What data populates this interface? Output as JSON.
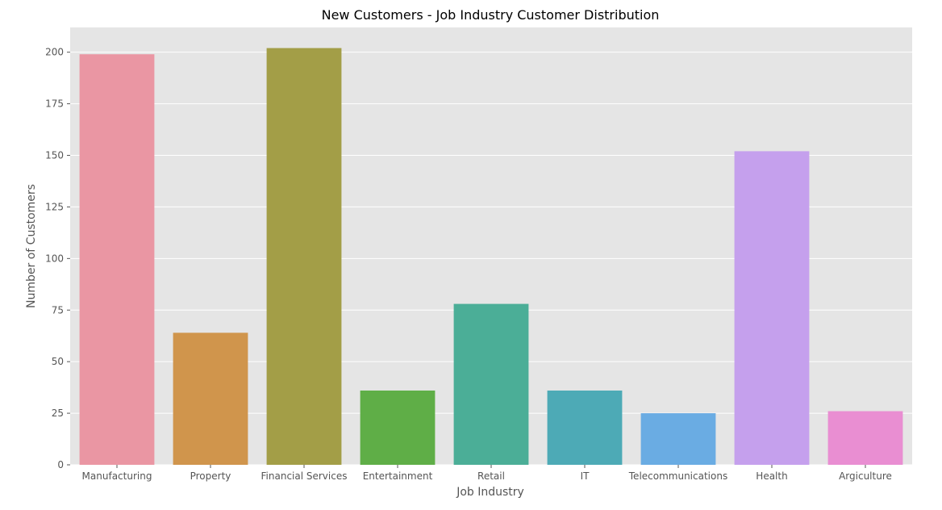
{
  "chart_data": {
    "type": "bar",
    "title": "New Customers - Job Industry Customer Distribution",
    "xlabel": "Job Industry",
    "ylabel": "Number of Customers",
    "categories": [
      "Manufacturing",
      "Property",
      "Financial Services",
      "Entertainment",
      "Retail",
      "IT",
      "Telecommunications",
      "Health",
      "Argiculture"
    ],
    "values": [
      199,
      64,
      202,
      36,
      78,
      36,
      25,
      152,
      26
    ],
    "colors": [
      "#ea96a3",
      "#d0954c",
      "#a39e47",
      "#5fae47",
      "#4bae97",
      "#4daab6",
      "#6aace3",
      "#c5a0ed",
      "#e98ed2"
    ],
    "ylim": [
      0,
      212
    ],
    "yticks": [
      0,
      25,
      50,
      75,
      100,
      125,
      150,
      175,
      200
    ],
    "grid": true,
    "background": "#e5e5e5"
  }
}
